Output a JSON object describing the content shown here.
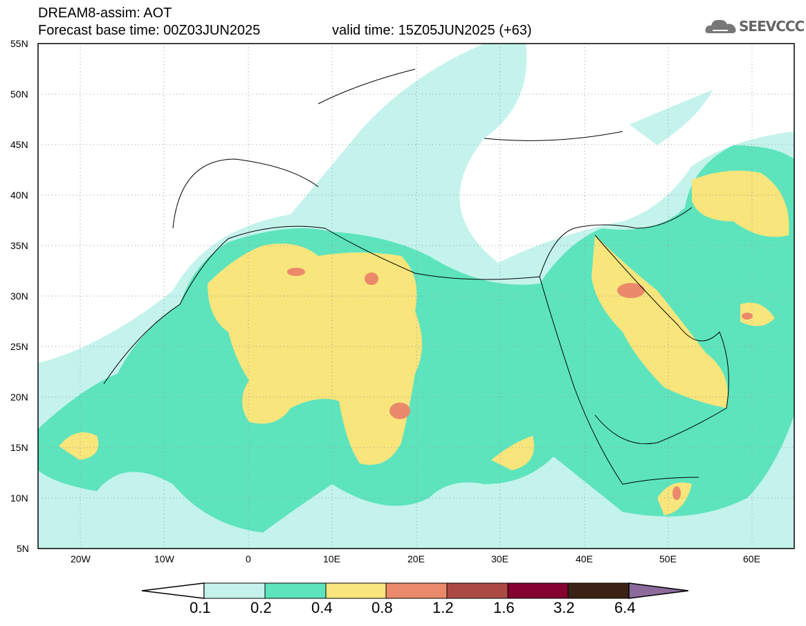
{
  "title": {
    "line1": "DREAM8-assim: AOT",
    "base_time": "Forecast base time: 00Z03JUN2025",
    "valid_time": "valid time: 15Z05JUN2025 (+63)"
  },
  "logo": {
    "text": "SEEVCCC"
  },
  "axes": {
    "lat_labels": [
      "55N",
      "50N",
      "45N",
      "40N",
      "35N",
      "30N",
      "25N",
      "20N",
      "15N",
      "10N",
      "5N"
    ],
    "lon_labels": [
      "20W",
      "10W",
      "0",
      "10E",
      "20E",
      "30E",
      "40E",
      "50E",
      "60E"
    ]
  },
  "colorbar": {
    "levels": [
      "0.1",
      "0.2",
      "0.4",
      "0.8",
      "1.2",
      "1.6",
      "3.2",
      "6.4"
    ],
    "colors": [
      "#ffffff",
      "#c4f3ec",
      "#5de4bd",
      "#f8e57c",
      "#eb8a6a",
      "#ab4a42",
      "#840330",
      "#3a2314",
      "#8c6a9c"
    ]
  }
}
